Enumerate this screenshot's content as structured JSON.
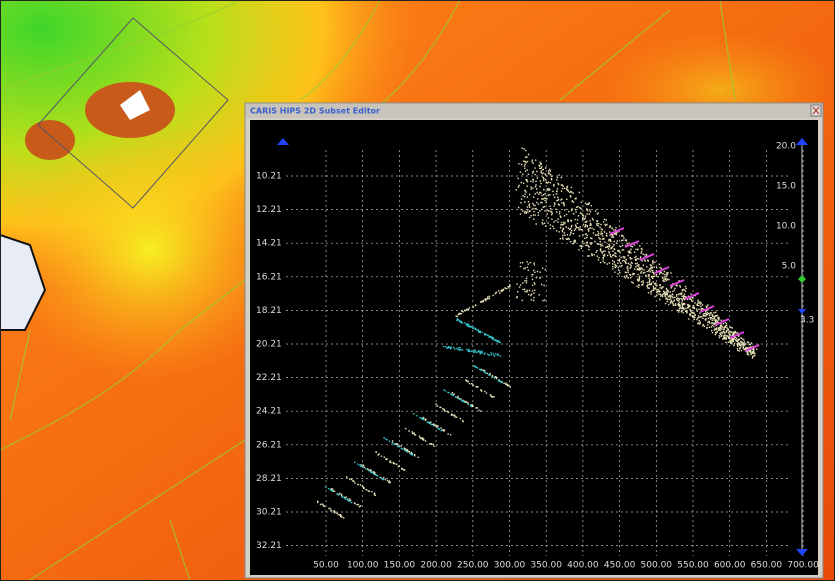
{
  "window": {
    "title": "CARIS HIPS 2D Subset Editor"
  },
  "left_axis": {
    "labels": [
      "10.21",
      "12.21",
      "14.21",
      "16.21",
      "18.21",
      "20.21",
      "22.21",
      "24.21",
      "26.21",
      "28.21",
      "30.21",
      "32.21"
    ]
  },
  "bottom_axis": {
    "labels": [
      "50.00",
      "100.00",
      "150.00",
      "200.00",
      "250.00",
      "300.00",
      "350.00",
      "400.00",
      "450.00",
      "500.00",
      "550.00",
      "600.00",
      "650.00",
      "700.00"
    ]
  },
  "right_scale": {
    "labels": [
      "20.0",
      "15.0",
      "10.0",
      "5.0"
    ],
    "marker_label": "3.3"
  }
}
